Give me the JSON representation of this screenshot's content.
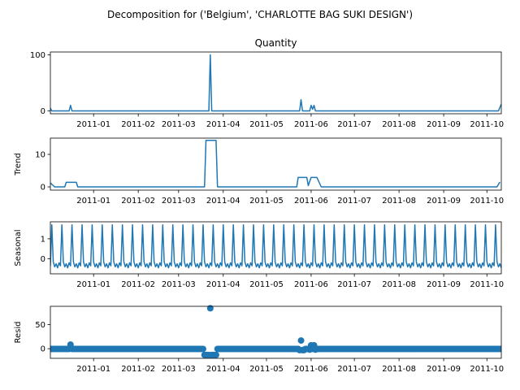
{
  "figure": {
    "suptitle": "Decomposition for ('Belgium', 'CHARLOTTE BAG SUKI DESIGN')"
  },
  "chart_data": [
    {
      "type": "line",
      "id": "observed",
      "title": "Quantity",
      "ylabel": "",
      "xlim": [
        "2010-12-02",
        "2011-10-11"
      ],
      "ylim": [
        -5,
        105
      ],
      "yticks": [
        0,
        100
      ],
      "color": "#1f77b4",
      "points": [
        [
          "2010-12-02",
          5
        ],
        [
          "2010-12-03",
          0
        ],
        [
          "2010-12-15",
          0
        ],
        [
          "2010-12-16",
          10
        ],
        [
          "2010-12-17",
          0
        ],
        [
          "2011-03-22",
          0
        ],
        [
          "2011-03-23",
          100
        ],
        [
          "2011-03-24",
          0
        ],
        [
          "2011-05-24",
          0
        ],
        [
          "2011-05-25",
          20
        ],
        [
          "2011-05-26",
          0
        ],
        [
          "2011-05-31",
          0
        ],
        [
          "2011-06-01",
          10
        ],
        [
          "2011-06-02",
          3
        ],
        [
          "2011-06-03",
          10
        ],
        [
          "2011-06-04",
          0
        ],
        [
          "2011-10-09",
          0
        ],
        [
          "2011-10-11",
          12
        ]
      ]
    },
    {
      "type": "line",
      "id": "trend",
      "title": "",
      "ylabel": "Trend",
      "xlim": [
        "2010-12-02",
        "2011-10-11"
      ],
      "ylim": [
        -1,
        15
      ],
      "yticks": [
        0,
        10
      ],
      "color": "#1f77b4",
      "points": [
        [
          "2010-12-02",
          1.2
        ],
        [
          "2010-12-05",
          0
        ],
        [
          "2010-12-12",
          0
        ],
        [
          "2010-12-13",
          1.4
        ],
        [
          "2010-12-20",
          1.4
        ],
        [
          "2010-12-21",
          0
        ],
        [
          "2011-03-19",
          0
        ],
        [
          "2011-03-20",
          14.3
        ],
        [
          "2011-03-27",
          14.3
        ],
        [
          "2011-03-28",
          0
        ],
        [
          "2011-05-22",
          0
        ],
        [
          "2011-05-23",
          2.9
        ],
        [
          "2011-05-29",
          2.9
        ],
        [
          "2011-05-30",
          0.4
        ],
        [
          "2011-06-01",
          2.9
        ],
        [
          "2011-06-05",
          2.9
        ],
        [
          "2011-06-08",
          0
        ],
        [
          "2011-10-08",
          0
        ],
        [
          "2011-10-10",
          1.5
        ]
      ]
    },
    {
      "type": "line",
      "id": "seasonal",
      "title": "",
      "ylabel": "Seasonal",
      "xlim": [
        "2010-12-02",
        "2011-10-11"
      ],
      "ylim": [
        -0.75,
        1.85
      ],
      "yticks": [
        0,
        1
      ],
      "color": "#1f77b4",
      "pattern": {
        "period_days": 7,
        "start": "2010-12-02",
        "end": "2011-10-11",
        "cycle": [
          -0.35,
          1.7,
          -0.15,
          -0.4,
          -0.25,
          -0.45,
          -0.2
        ]
      }
    },
    {
      "type": "scatter",
      "id": "resid",
      "title": "",
      "ylabel": "Resid",
      "xlim": [
        "2010-12-02",
        "2011-10-11"
      ],
      "ylim": [
        -20,
        88
      ],
      "yticks": [
        0,
        50
      ],
      "color": "#1f77b4",
      "baseline": {
        "start": "2010-12-02",
        "end": "2011-10-11",
        "value": -0.5
      },
      "points": [
        [
          "2010-12-16",
          8.5
        ],
        [
          "2011-03-19",
          -13
        ],
        [
          "2011-03-20",
          -13
        ],
        [
          "2011-03-21",
          -13
        ],
        [
          "2011-03-22",
          -13
        ],
        [
          "2011-03-23",
          84
        ],
        [
          "2011-03-24",
          -13
        ],
        [
          "2011-03-25",
          -13
        ],
        [
          "2011-03-26",
          -13
        ],
        [
          "2011-03-27",
          -13
        ],
        [
          "2011-05-24",
          -3
        ],
        [
          "2011-05-25",
          17
        ],
        [
          "2011-05-26",
          -3
        ],
        [
          "2011-05-27",
          -3
        ],
        [
          "2011-05-31",
          -2
        ],
        [
          "2011-06-01",
          7
        ],
        [
          "2011-06-03",
          7
        ],
        [
          "2011-06-04",
          -2
        ]
      ]
    }
  ],
  "xaxis": {
    "tick_labels": [
      "2011-01",
      "2011-02",
      "2011-03",
      "2011-04",
      "2011-05",
      "2011-06",
      "2011-07",
      "2011-08",
      "2011-09",
      "2011-10"
    ],
    "tick_dates": [
      "2011-01-01",
      "2011-02-01",
      "2011-03-01",
      "2011-04-01",
      "2011-05-01",
      "2011-06-01",
      "2011-07-01",
      "2011-08-01",
      "2011-09-01",
      "2011-10-01"
    ]
  }
}
